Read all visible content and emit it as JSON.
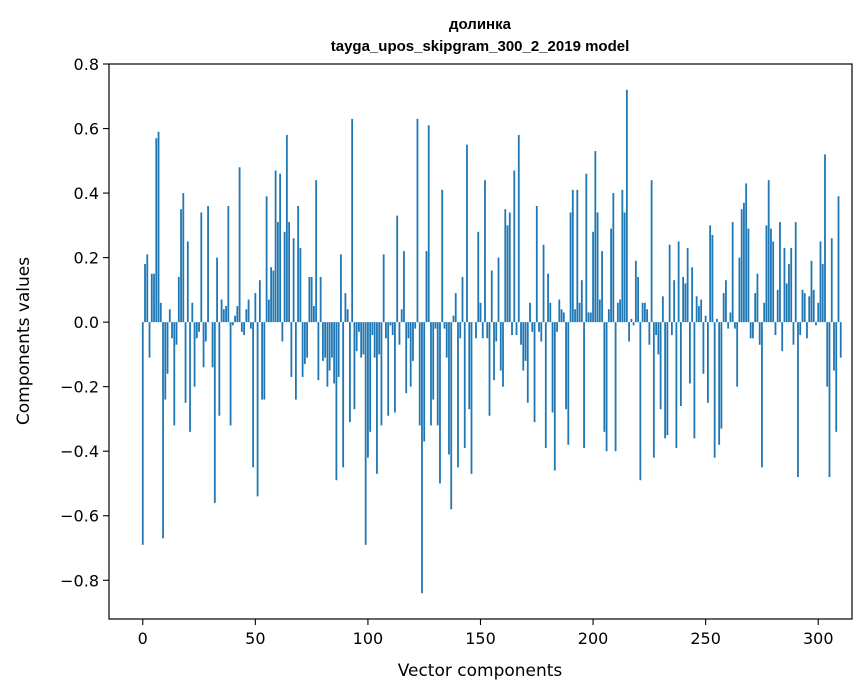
{
  "chart_data": {
    "type": "bar",
    "title_line1": "долинка",
    "title_line2": "tayga_upos_skipgram_300_2_2019 model",
    "xlabel": "Vector components",
    "ylabel": "Components values",
    "xlim": [
      -15,
      315
    ],
    "ylim": [
      -0.92,
      0.8
    ],
    "x_ticks": [
      0,
      50,
      100,
      150,
      200,
      250,
      300
    ],
    "x_tick_labels": [
      "0",
      "50",
      "100",
      "150",
      "200",
      "250",
      "300"
    ],
    "y_ticks": [
      -0.8,
      -0.6,
      -0.4,
      -0.2,
      0.0,
      0.2,
      0.4,
      0.6,
      0.8
    ],
    "y_tick_labels": [
      "−0.8",
      "−0.6",
      "−0.4",
      "−0.2",
      "0.0",
      "0.2",
      "0.4",
      "0.6",
      "0.8"
    ],
    "bar_color": "#1f77b4",
    "values": [
      -0.69,
      0.18,
      0.21,
      -0.11,
      0.15,
      0.15,
      0.57,
      0.59,
      0.06,
      -0.67,
      -0.24,
      -0.16,
      0.04,
      -0.05,
      -0.32,
      -0.07,
      0.14,
      0.35,
      0.4,
      -0.25,
      0.25,
      -0.34,
      0.06,
      -0.2,
      -0.05,
      -0.03,
      0.34,
      -0.14,
      -0.06,
      0.36,
      0.0,
      -0.14,
      -0.56,
      0.2,
      -0.29,
      0.07,
      0.04,
      0.05,
      0.36,
      -0.32,
      -0.01,
      0.02,
      0.05,
      0.48,
      -0.03,
      -0.04,
      0.04,
      0.07,
      -0.02,
      -0.45,
      0.09,
      -0.54,
      0.13,
      -0.24,
      -0.24,
      0.39,
      0.07,
      0.17,
      0.16,
      0.47,
      0.31,
      0.46,
      -0.06,
      0.28,
      0.58,
      0.31,
      -0.17,
      0.26,
      -0.24,
      0.36,
      0.23,
      -0.17,
      -0.13,
      -0.11,
      0.14,
      0.14,
      0.05,
      0.44,
      -0.18,
      0.14,
      -0.12,
      -0.11,
      -0.2,
      -0.15,
      -0.11,
      -0.19,
      -0.49,
      -0.17,
      0.21,
      -0.45,
      0.09,
      0.04,
      -0.31,
      0.63,
      -0.27,
      -0.09,
      -0.03,
      -0.11,
      -0.1,
      -0.69,
      -0.42,
      -0.34,
      -0.04,
      -0.11,
      -0.47,
      -0.1,
      -0.32,
      0.21,
      -0.05,
      -0.29,
      -0.01,
      -0.04,
      -0.28,
      0.33,
      -0.07,
      0.04,
      0.22,
      -0.22,
      -0.05,
      -0.2,
      -0.12,
      -0.02,
      0.63,
      -0.32,
      -0.84,
      -0.37,
      0.22,
      0.61,
      -0.32,
      -0.24,
      -0.02,
      -0.32,
      -0.5,
      0.41,
      -0.02,
      -0.11,
      -0.41,
      -0.58,
      0.02,
      0.09,
      -0.45,
      -0.05,
      0.14,
      -0.39,
      0.55,
      -0.27,
      -0.47,
      0.0,
      -0.05,
      0.28,
      0.06,
      -0.05,
      0.44,
      -0.05,
      -0.29,
      0.16,
      -0.18,
      -0.06,
      0.2,
      -0.15,
      -0.2,
      0.35,
      0.3,
      0.34,
      -0.04,
      0.47,
      -0.04,
      0.58,
      -0.07,
      -0.15,
      -0.12,
      -0.25,
      0.06,
      -0.03,
      -0.31,
      0.36,
      -0.03,
      -0.06,
      0.24,
      -0.39,
      0.15,
      0.06,
      -0.28,
      -0.46,
      -0.03,
      0.07,
      0.04,
      0.03,
      -0.27,
      -0.38,
      0.34,
      0.41,
      0.04,
      0.41,
      0.06,
      0.13,
      -0.39,
      0.46,
      0.03,
      0.03,
      0.28,
      0.53,
      0.34,
      0.07,
      0.22,
      -0.34,
      -0.4,
      0.04,
      0.29,
      0.4,
      -0.4,
      0.06,
      0.07,
      0.41,
      0.34,
      0.72,
      -0.06,
      0.01,
      -0.01,
      0.19,
      0.14,
      -0.49,
      0.06,
      0.06,
      0.04,
      -0.07,
      0.44,
      -0.42,
      -0.04,
      -0.1,
      -0.27,
      0.08,
      -0.36,
      -0.35,
      0.24,
      -0.04,
      0.13,
      -0.39,
      0.25,
      -0.26,
      0.14,
      0.12,
      0.23,
      -0.19,
      0.17,
      -0.36,
      0.08,
      0.05,
      0.07,
      -0.16,
      0.02,
      -0.25,
      0.3,
      0.27,
      -0.42,
      0.01,
      -0.38,
      -0.33,
      0.09,
      0.13,
      -0.02,
      0.03,
      0.31,
      -0.02,
      -0.2,
      0.2,
      0.35,
      0.37,
      0.43,
      0.29,
      -0.05,
      -0.05,
      0.09,
      0.15,
      -0.07,
      -0.45,
      0.06,
      0.3,
      0.44,
      0.29,
      0.25,
      -0.04,
      0.1,
      0.31,
      -0.09,
      0.23,
      0.12,
      0.18,
      0.23,
      -0.07,
      0.31,
      -0.48,
      -0.04,
      0.1,
      0.09,
      -0.05,
      0.08,
      0.19,
      0.1,
      -0.01,
      0.06,
      0.25,
      0.18,
      0.52,
      -0.2,
      -0.48,
      0.26,
      -0.15,
      -0.34,
      0.39,
      -0.11
    ]
  }
}
